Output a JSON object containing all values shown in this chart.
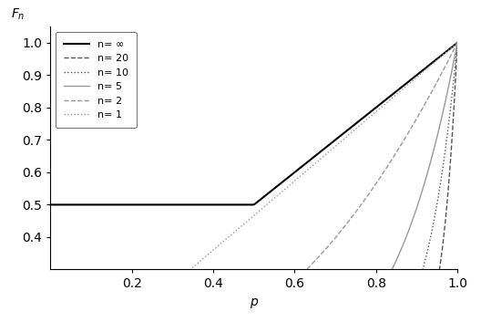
{
  "title": "",
  "ylabel": "$F_n$",
  "xlabel": "p",
  "xlim": [
    0,
    1.0
  ],
  "ylim": [
    0.3,
    1.05
  ],
  "yticks": [
    0.4,
    0.5,
    0.6,
    0.7,
    0.8,
    0.9,
    1.0
  ],
  "xticks": [
    0.2,
    0.4,
    0.6,
    0.8,
    1.0
  ],
  "series": [
    {
      "label": "n= ∞",
      "linestyle": "-",
      "color": "#000000",
      "linewidth": 1.5,
      "n": -1
    },
    {
      "label": "n= 20",
      "linestyle": "--",
      "color": "#555555",
      "linewidth": 1.0,
      "n": 20
    },
    {
      "label": "n= 10",
      "linestyle": ":",
      "color": "#555555",
      "linewidth": 1.0,
      "n": 10
    },
    {
      "label": "n= 5",
      "linestyle": "-",
      "color": "#999999",
      "linewidth": 1.0,
      "n": 5
    },
    {
      "label": "n= 2",
      "linestyle": "--",
      "color": "#999999",
      "linewidth": 1.0,
      "n": 2
    },
    {
      "label": "n= 1",
      "linestyle": ":",
      "color": "#999999",
      "linewidth": 1.0,
      "n": 1
    }
  ],
  "legend_loc": "upper left",
  "background_color": "#ffffff",
  "num_points": 500
}
